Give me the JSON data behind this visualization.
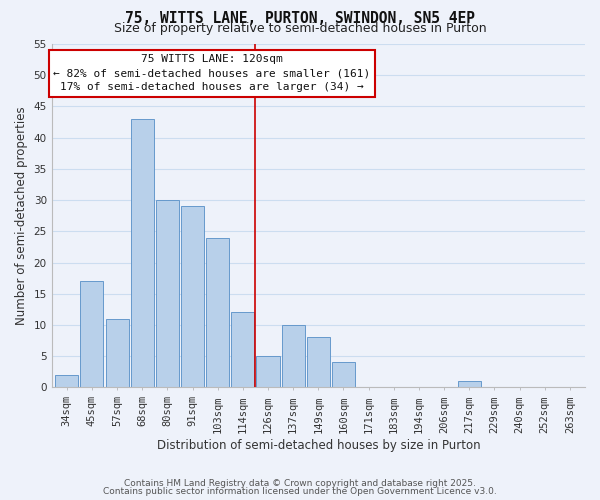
{
  "title": "75, WITTS LANE, PURTON, SWINDON, SN5 4EP",
  "subtitle": "Size of property relative to semi-detached houses in Purton",
  "xlabel": "Distribution of semi-detached houses by size in Purton",
  "ylabel": "Number of semi-detached properties",
  "footer_line1": "Contains HM Land Registry data © Crown copyright and database right 2025.",
  "footer_line2": "Contains public sector information licensed under the Open Government Licence v3.0.",
  "bin_labels": [
    "34sqm",
    "45sqm",
    "57sqm",
    "68sqm",
    "80sqm",
    "91sqm",
    "103sqm",
    "114sqm",
    "126sqm",
    "137sqm",
    "149sqm",
    "160sqm",
    "171sqm",
    "183sqm",
    "194sqm",
    "206sqm",
    "217sqm",
    "229sqm",
    "240sqm",
    "252sqm",
    "263sqm"
  ],
  "bar_values": [
    2,
    17,
    11,
    43,
    30,
    29,
    24,
    12,
    5,
    10,
    8,
    4,
    0,
    0,
    0,
    0,
    1,
    0,
    0,
    0,
    0
  ],
  "bar_color": "#b8d0ea",
  "bar_edge_color": "#6699cc",
  "grid_color": "#ccddf0",
  "background_color": "#eef2fa",
  "property_line_x": 7.5,
  "property_line_color": "#cc0000",
  "annotation_title": "75 WITTS LANE: 120sqm",
  "annotation_line1": "← 82% of semi-detached houses are smaller (161)",
  "annotation_line2": "17% of semi-detached houses are larger (34) →",
  "annotation_box_color": "#ffffff",
  "annotation_box_edge": "#cc0000",
  "ylim": [
    0,
    55
  ],
  "yticks": [
    0,
    5,
    10,
    15,
    20,
    25,
    30,
    35,
    40,
    45,
    50,
    55
  ],
  "title_fontsize": 10.5,
  "subtitle_fontsize": 9,
  "axis_label_fontsize": 8.5,
  "tick_fontsize": 7.5,
  "footer_fontsize": 6.5,
  "annotation_fontsize": 8
}
